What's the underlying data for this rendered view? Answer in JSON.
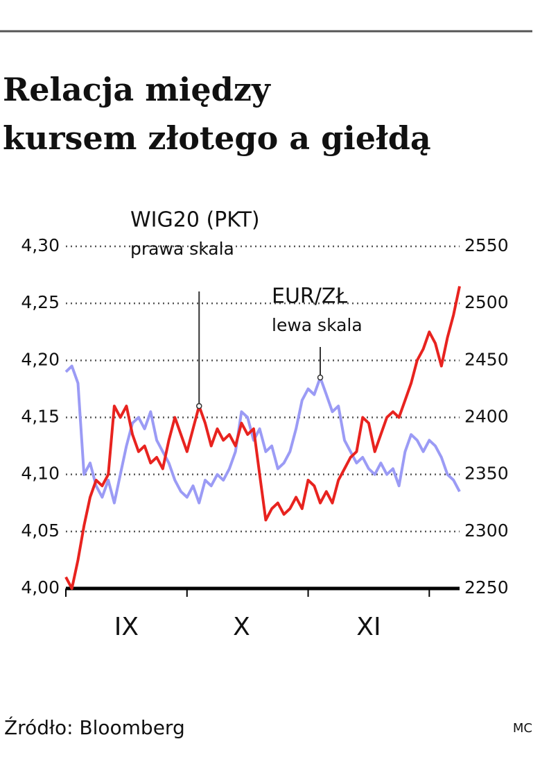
{
  "chart_data": {
    "type": "line",
    "title": [
      "Relacja między",
      "kursem złotego a giełdą"
    ],
    "source": "Źródło: Bloomberg",
    "credit": "MC",
    "categories": [
      null,
      null,
      null,
      null,
      null,
      null,
      null,
      null,
      null,
      null,
      "IX",
      null,
      null,
      null,
      null,
      null,
      null,
      null,
      null,
      null,
      null,
      null,
      null,
      null,
      null,
      null,
      null,
      null,
      null,
      "X",
      null,
      null,
      null,
      null,
      null,
      null,
      null,
      null,
      null,
      null,
      null,
      null,
      null,
      null,
      null,
      null,
      null,
      null,
      null,
      null,
      "XI",
      null,
      null,
      null,
      null,
      null,
      null,
      null,
      null,
      null,
      null,
      null,
      null,
      null,
      null,
      null
    ],
    "series": [
      {
        "name": "WIG20 (PKT)",
        "scale_label": "prawa skala",
        "color": "#e8231f",
        "axis": "y2",
        "values": [
          2260,
          2250,
          2275,
          2305,
          2330,
          2345,
          2340,
          2350,
          2410,
          2400,
          2410,
          2385,
          2370,
          2375,
          2360,
          2365,
          2355,
          2380,
          2400,
          2385,
          2370,
          2390,
          2410,
          2395,
          2375,
          2390,
          2380,
          2385,
          2375,
          2395,
          2385,
          2390,
          2350,
          2310,
          2320,
          2325,
          2315,
          2320,
          2330,
          2320,
          2345,
          2340,
          2325,
          2335,
          2325,
          2345,
          2355,
          2365,
          2370,
          2400,
          2395,
          2370,
          2385,
          2400,
          2405,
          2400,
          2415,
          2430,
          2450,
          2460,
          2475,
          2465,
          2445,
          2470,
          2490,
          2515
        ]
      },
      {
        "name": "EUR/ZŁ",
        "scale_label": "lewa skala",
        "color": "#9b9bf5",
        "values": [
          4.19,
          4.195,
          4.18,
          4.1,
          4.11,
          4.09,
          4.08,
          4.095,
          4.075,
          4.1,
          4.125,
          4.145,
          4.15,
          4.14,
          4.155,
          4.13,
          4.12,
          4.11,
          4.095,
          4.085,
          4.08,
          4.09,
          4.075,
          4.095,
          4.09,
          4.1,
          4.095,
          4.105,
          4.12,
          4.155,
          4.15,
          4.13,
          4.14,
          4.12,
          4.125,
          4.105,
          4.11,
          4.12,
          4.14,
          4.165,
          4.175,
          4.17,
          4.185,
          4.17,
          4.155,
          4.16,
          4.13,
          4.12,
          4.11,
          4.115,
          4.105,
          4.1,
          4.11,
          4.1,
          4.105,
          4.09,
          4.12,
          4.135,
          4.13,
          4.12,
          4.13,
          4.125,
          4.115,
          4.1,
          4.095,
          4.085
        ]
      }
    ],
    "ylim": [
      4.0,
      4.3
    ],
    "yticks": [
      {
        "value": 4.0,
        "label": "4,00"
      },
      {
        "value": 4.05,
        "label": "4,05"
      },
      {
        "value": 4.1,
        "label": "4,10"
      },
      {
        "value": 4.15,
        "label": "4,15"
      },
      {
        "value": 4.2,
        "label": "4,20"
      },
      {
        "value": 4.25,
        "label": "4,25"
      },
      {
        "value": 4.3,
        "label": "4,30"
      }
    ],
    "y2lim": [
      2250,
      2550
    ],
    "y2ticks": [
      2250,
      2300,
      2350,
      2400,
      2450,
      2500,
      2550
    ],
    "grid": true
  }
}
